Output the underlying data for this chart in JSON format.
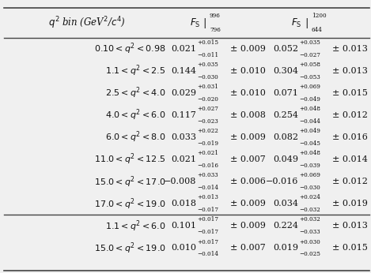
{
  "col0_header": "$q^2$ bin (GeV$^2$/$c^4$)",
  "rows": [
    {
      "bin": "$0.10 < q^2 < 0.98$",
      "v1": "0.021",
      "up1": "+0.015",
      "dn1": "−0.011",
      "sys1": "± 0.009",
      "v2": "0.052",
      "up2": "+0.035",
      "dn2": "−0.027",
      "sys2": "± 0.013",
      "group": 0
    },
    {
      "bin": "$1.1 < q^2 < 2.5$",
      "v1": "0.144",
      "up1": "+0.035",
      "dn1": "−0.030",
      "sys1": "± 0.010",
      "v2": "0.304",
      "up2": "+0.058",
      "dn2": "−0.053",
      "sys2": "± 0.013",
      "group": 0
    },
    {
      "bin": "$2.5 < q^2 < 4.0$",
      "v1": "0.029",
      "up1": "+0.031",
      "dn1": "−0.020",
      "sys1": "± 0.010",
      "v2": "0.071",
      "up2": "+0.069",
      "dn2": "−0.049",
      "sys2": "± 0.015",
      "group": 0
    },
    {
      "bin": "$4.0 < q^2 < 6.0$",
      "v1": "0.117",
      "up1": "+0.027",
      "dn1": "−0.023",
      "sys1": "± 0.008",
      "v2": "0.254",
      "up2": "+0.048",
      "dn2": "−0.044",
      "sys2": "± 0.012",
      "group": 0
    },
    {
      "bin": "$6.0 < q^2 < 8.0$",
      "v1": "0.033",
      "up1": "+0.022",
      "dn1": "−0.019",
      "sys1": "± 0.009",
      "v2": "0.082",
      "up2": "+0.049",
      "dn2": "−0.045",
      "sys2": "± 0.016",
      "group": 0
    },
    {
      "bin": "$11.0 < q^2 < 12.5$",
      "v1": "0.021",
      "up1": "+0.021",
      "dn1": "−0.016",
      "sys1": "± 0.007",
      "v2": "0.049",
      "up2": "+0.048",
      "dn2": "−0.039",
      "sys2": "± 0.014",
      "group": 0
    },
    {
      "bin": "$15.0 < q^2 < 17.0$",
      "v1": "−0.008",
      "up1": "+0.033",
      "dn1": "−0.014",
      "sys1": "± 0.006",
      "v2": "−0.016",
      "up2": "+0.069",
      "dn2": "−0.030",
      "sys2": "± 0.012",
      "group": 0
    },
    {
      "bin": "$17.0 < q^2 < 19.0$",
      "v1": "0.018",
      "up1": "+0.013",
      "dn1": "−0.017",
      "sys1": "± 0.009",
      "v2": "0.034",
      "up2": "+0.024",
      "dn2": "−0.032",
      "sys2": "± 0.019",
      "group": 0
    },
    {
      "bin": "$1.1 < q^2 < 6.0$",
      "v1": "0.101",
      "up1": "+0.017",
      "dn1": "−0.017",
      "sys1": "± 0.009",
      "v2": "0.224",
      "up2": "+0.032",
      "dn2": "−0.033",
      "sys2": "± 0.013",
      "group": 1
    },
    {
      "bin": "$15.0 < q^2 < 19.0$",
      "v1": "0.010",
      "up1": "+0.017",
      "dn1": "−0.014",
      "sys1": "± 0.007",
      "v2": "0.019",
      "up2": "+0.030",
      "dn2": "−0.025",
      "sys2": "± 0.015",
      "group": 1
    }
  ],
  "bg_color": "#f0f0f0",
  "line_color": "#444444",
  "text_color": "#111111",
  "fs_main": 8.0,
  "fs_small": 5.2,
  "fs_header": 8.5
}
